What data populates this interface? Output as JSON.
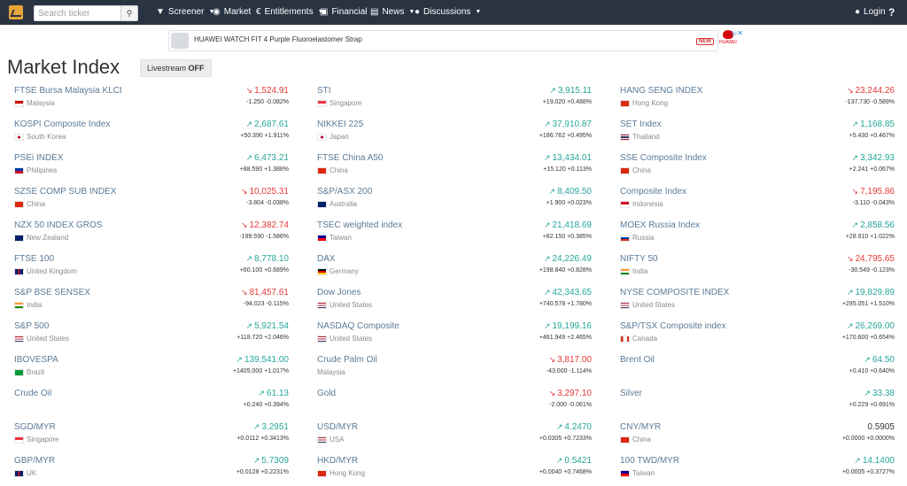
{
  "nav": {
    "search_placeholder": "Search ticker",
    "screener": "Screener",
    "market": "Market",
    "entitlements": "Entitlements",
    "financial": "Financial",
    "news": "News",
    "discussions": "Discussions",
    "login": "Login",
    "help": "?"
  },
  "ad": {
    "text": "HUAWEI WATCH FIT 4 Purple Fluoroelastomer Strap",
    "badge": "NEW",
    "brand": "HUAWEI"
  },
  "page": {
    "title": "Market Index",
    "livestream_label": "Livestream",
    "livestream_state": "OFF"
  },
  "indices": [
    [
      {
        "name": "FTSE Bursa Malaysia KLCI",
        "country": "Malaysia",
        "flag": "my",
        "value": "1,524.91",
        "change": "-1.250 -0.082%",
        "dir": "down"
      },
      {
        "name": "KOSPI Composite Index",
        "country": "South Korea",
        "flag": "kr",
        "value": "2,687.61",
        "change": "+50.390 +1.911%",
        "dir": "up"
      },
      {
        "name": "PSEi INDEX",
        "country": "Philipines",
        "flag": "ph",
        "value": "6,473.21",
        "change": "+88.590 +1.388%",
        "dir": "up"
      },
      {
        "name": "SZSE COMP SUB INDEX",
        "country": "China",
        "flag": "cn",
        "value": "10,025.31",
        "change": "-3.804 -0.038%",
        "dir": "down"
      },
      {
        "name": "NZX 50 INDEX GROS",
        "country": "New Zealand",
        "flag": "nz",
        "value": "12,382.74",
        "change": "-199.590 -1.586%",
        "dir": "down"
      },
      {
        "name": "FTSE 100",
        "country": "United Kingdom",
        "flag": "uk",
        "value": "8,778.10",
        "change": "+60.100 +0.689%",
        "dir": "up"
      },
      {
        "name": "S&P BSE SENSEX",
        "country": "India",
        "flag": "in",
        "value": "81,457.61",
        "change": "-94.023 -0.115%",
        "dir": "down"
      },
      {
        "name": "S&P 500",
        "country": "United States",
        "flag": "us",
        "value": "5,921.54",
        "change": "+118.720 +2.046%",
        "dir": "up"
      },
      {
        "name": "IBOVESPA",
        "country": "Brazil",
        "flag": "br",
        "value": "139,541.00",
        "change": "+1405.000 +1.017%",
        "dir": "up"
      },
      {
        "name": "Crude Oil",
        "country": "",
        "flag": "",
        "value": "61.13",
        "change": "+0.240 +0.394%",
        "dir": "up"
      },
      {
        "name": "SGD/MYR",
        "country": "Singapore",
        "flag": "sg",
        "value": "3.2951",
        "change": "+0.0112 +0.3413%",
        "dir": "up"
      },
      {
        "name": "GBP/MYR",
        "country": "UK",
        "flag": "uk",
        "value": "5.7309",
        "change": "+0.0128 +0.2231%",
        "dir": "up"
      }
    ],
    [
      {
        "name": "STI",
        "country": "Singapore",
        "flag": "sg",
        "value": "3,915.11",
        "change": "+19.020 +0.488%",
        "dir": "up"
      },
      {
        "name": "NIKKEI 225",
        "country": "Japan",
        "flag": "jp",
        "value": "37,910.87",
        "change": "+186.762 +0.495%",
        "dir": "up"
      },
      {
        "name": "FTSE China A50",
        "country": "China",
        "flag": "cn",
        "value": "13,434.01",
        "change": "+15.120 +0.113%",
        "dir": "up"
      },
      {
        "name": "S&P/ASX 200",
        "country": "Australia",
        "flag": "au",
        "value": "8,409.50",
        "change": "+1.900 +0.023%",
        "dir": "up"
      },
      {
        "name": "TSEC weighted index",
        "country": "Taiwan",
        "flag": "tw",
        "value": "21,418.69",
        "change": "+82.150 +0.385%",
        "dir": "up"
      },
      {
        "name": "DAX",
        "country": "Germany",
        "flag": "de",
        "value": "24,226.49",
        "change": "+198.840 +0.828%",
        "dir": "up"
      },
      {
        "name": "Dow Jones",
        "country": "United States",
        "flag": "us",
        "value": "42,343.65",
        "change": "+740.578 +1.780%",
        "dir": "up"
      },
      {
        "name": "NASDAQ Composite",
        "country": "United States",
        "flag": "us",
        "value": "19,199.16",
        "change": "+461.949 +2.465%",
        "dir": "up"
      },
      {
        "name": "Crude Palm Oil",
        "country": "Malaysia",
        "flag": "",
        "value": "3,817.00",
        "change": "-43.000 -1.114%",
        "dir": "down"
      },
      {
        "name": "Gold",
        "country": "",
        "flag": "",
        "value": "3,297.10",
        "change": "-2.000 -0.061%",
        "dir": "down"
      },
      {
        "name": "USD/MYR",
        "country": "USA",
        "flag": "us",
        "value": "4.2470",
        "change": "+0.0305 +0.7233%",
        "dir": "up"
      },
      {
        "name": "HKD/MYR",
        "country": "Hong Kong",
        "flag": "hk",
        "value": "0.5421",
        "change": "+0.0040 +0.7468%",
        "dir": "up"
      }
    ],
    [
      {
        "name": "HANG SENG INDEX",
        "country": "Hong Kong",
        "flag": "hk",
        "value": "23,244.26",
        "change": "-137.730 -0.589%",
        "dir": "down"
      },
      {
        "name": "SET Index",
        "country": "Thailand",
        "flag": "th",
        "value": "1,168.85",
        "change": "+5.430 +0.467%",
        "dir": "up"
      },
      {
        "name": "SSE Composite Index",
        "country": "China",
        "flag": "cn",
        "value": "3,342.93",
        "change": "+2.241 +0.067%",
        "dir": "up"
      },
      {
        "name": "Composite Index",
        "country": "Indonesia",
        "flag": "id",
        "value": "7,195.86",
        "change": "-3.110 -0.043%",
        "dir": "down"
      },
      {
        "name": "MOEX Russia Index",
        "country": "Russia",
        "flag": "ru",
        "value": "2,858.56",
        "change": "+28.910 +1.022%",
        "dir": "up"
      },
      {
        "name": "NIFTY 50",
        "country": "India",
        "flag": "in",
        "value": "24,795.65",
        "change": "-30.549 -0.123%",
        "dir": "down"
      },
      {
        "name": "NYSE COMPOSITE INDEX",
        "country": "United States",
        "flag": "us",
        "value": "19,829.89",
        "change": "+295.051 +1.510%",
        "dir": "up"
      },
      {
        "name": "S&P/TSX Composite index",
        "country": "Canada",
        "flag": "ca",
        "value": "26,269.00",
        "change": "+170.600 +0.654%",
        "dir": "up"
      },
      {
        "name": "Brent Oil",
        "country": "",
        "flag": "",
        "value": "64.50",
        "change": "+0.410 +0.640%",
        "dir": "up"
      },
      {
        "name": "Silver",
        "country": "",
        "flag": "",
        "value": "33.38",
        "change": "+0.229 +0.691%",
        "dir": "up"
      },
      {
        "name": "CNY/MYR",
        "country": "China",
        "flag": "cn",
        "value": "0.5905",
        "change": "+0.0000 +0.0000%",
        "dir": "flat"
      },
      {
        "name": "100 TWD/MYR",
        "country": "Taiwan",
        "flag": "tw",
        "value": "14.1400",
        "change": "+0.0005 +0.3727%",
        "dir": "up"
      }
    ]
  ],
  "colors": {
    "up": "#26a69a",
    "down": "#e53935",
    "nav_bg": "#2a3342",
    "link": "#5b7a96"
  }
}
